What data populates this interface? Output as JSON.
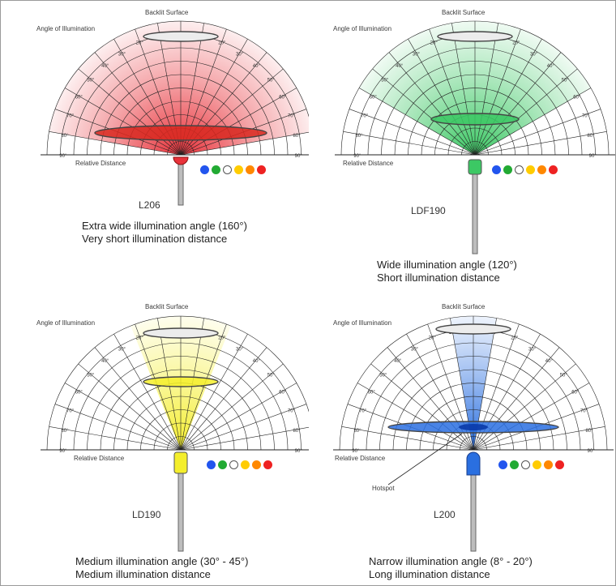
{
  "labels": {
    "backlit_surface": "Backlit Surface",
    "angle_of_illumination": "Angle of Illumination",
    "relative_distance": "Relative Distance",
    "hotspot": "Hotspot"
  },
  "angle_ticks": [
    "90°",
    "80°",
    "70°",
    "60°",
    "50°",
    "40°",
    "30°",
    "20°",
    "10°",
    "0°",
    "10°",
    "20°",
    "30°",
    "40°",
    "50°",
    "60°",
    "70°",
    "80°",
    "90°"
  ],
  "colors": {
    "led_options": [
      "#2255ee",
      "#22aa33",
      "#ffffff",
      "#ffcc00",
      "#ff8800",
      "#ee2222"
    ],
    "red_beam": "#e8323a",
    "green_beam": "#3cc864",
    "yellow_beam": "#f4ee2c",
    "blue_beam": "#2a6fe0"
  },
  "panels": [
    {
      "model": "L206",
      "caption_line1": "Extra wide illumination angle (160°)",
      "caption_line2": "Very short illumination distance",
      "beam_color": "#e8323a",
      "beam_half_angle_deg": 80
    },
    {
      "model": "LDF190",
      "caption_line1": "Wide illumination angle (120°)",
      "caption_line2": "Short illumination distance",
      "beam_color": "#3cc864",
      "beam_half_angle_deg": 60
    },
    {
      "model": "LD190",
      "caption_line1": "Medium illumination angle (30° - 45°)",
      "caption_line2": "Medium illumination distance",
      "beam_color": "#f4ee2c",
      "beam_half_angle_deg": 22
    },
    {
      "model": "L200",
      "caption_line1": "Narrow illumination angle (8° - 20°)",
      "caption_line2": "Long illumination distance",
      "beam_color": "#2a6fe0",
      "beam_half_angle_deg": 10
    }
  ]
}
